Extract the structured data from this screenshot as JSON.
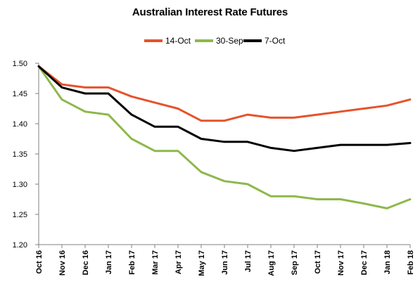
{
  "chart_data": {
    "type": "line",
    "title": "Australian Interest Rate Futures",
    "xlabel": "",
    "ylabel": "",
    "categories": [
      "Oct 16",
      "Nov 16",
      "Dec 16",
      "Jan 17",
      "Feb 17",
      "Mar 17",
      "Apr 17",
      "May 17",
      "Jun 17",
      "Jul 17",
      "Aug 17",
      "Sep 17",
      "Oct 17",
      "Nov 17",
      "Dec 17",
      "Jan 18",
      "Feb 18"
    ],
    "ylim": [
      1.2,
      1.5
    ],
    "yticks": [
      "1.50",
      "1.45",
      "1.40",
      "1.35",
      "1.30",
      "1.25",
      "1.20"
    ],
    "grid": false,
    "legend_position": "top",
    "series": [
      {
        "name": "14-Oct",
        "color": "#E5532B",
        "values": [
          1.495,
          1.465,
          1.46,
          1.46,
          1.445,
          1.435,
          1.425,
          1.405,
          1.405,
          1.415,
          1.41,
          1.41,
          1.415,
          1.42,
          1.425,
          1.43,
          1.44
        ]
      },
      {
        "name": "30-Sep",
        "color": "#8DB84A",
        "values": [
          1.495,
          1.44,
          1.42,
          1.415,
          1.375,
          1.355,
          1.355,
          1.32,
          1.305,
          1.3,
          1.28,
          1.28,
          1.275,
          1.275,
          1.268,
          1.26,
          1.275
        ]
      },
      {
        "name": "7-Oct",
        "color": "#000000",
        "values": [
          1.495,
          1.46,
          1.45,
          1.45,
          1.415,
          1.395,
          1.395,
          1.375,
          1.37,
          1.37,
          1.36,
          1.355,
          1.36,
          1.365,
          1.365,
          1.365,
          1.368
        ]
      }
    ]
  }
}
